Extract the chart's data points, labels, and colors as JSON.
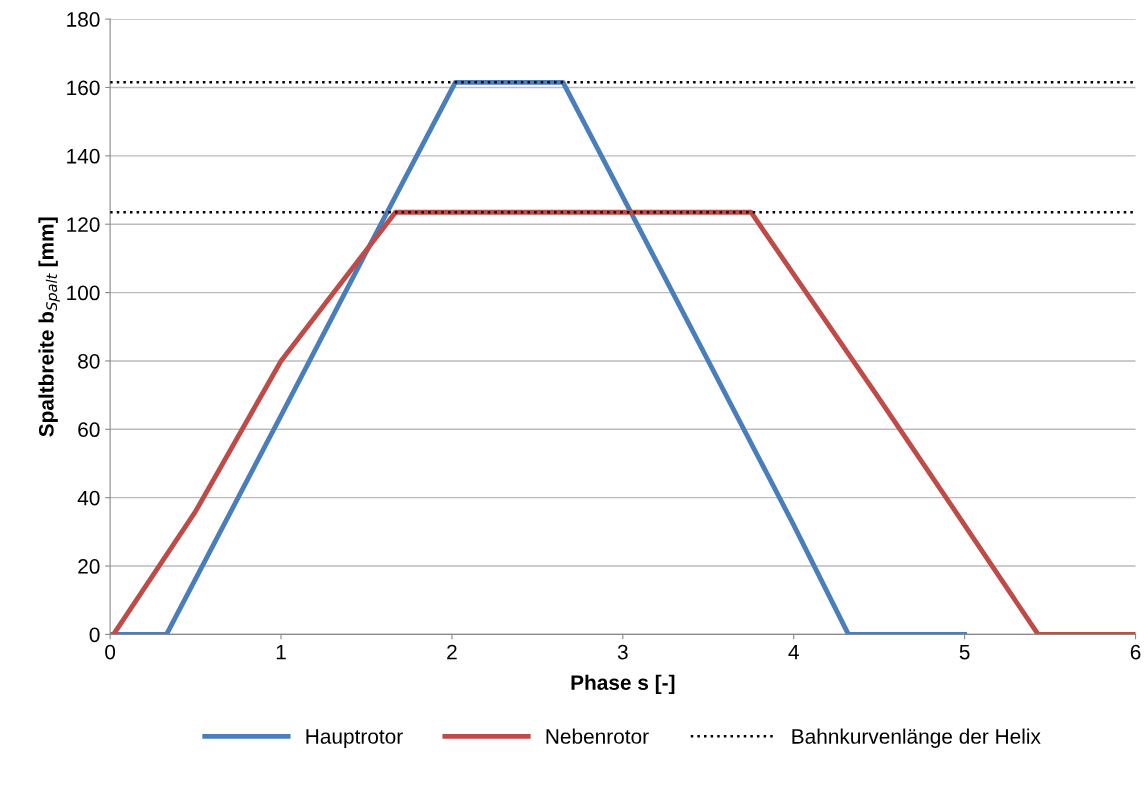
{
  "chart_data": {
    "type": "line",
    "xlabel": "Phase s [-]",
    "ylabel": "Spaltbreite b$_{Spalt}$ [mm]",
    "series": [
      {
        "name": "Hauptrotor",
        "color": "#4a7ebb",
        "x": [
          0,
          0.33,
          1.0,
          1.5,
          2.02,
          2.65,
          3.0,
          4.0,
          4.32,
          5.0
        ],
        "values": [
          0,
          0,
          64,
          112,
          161.5,
          161.5,
          128,
          32,
          0,
          0
        ]
      },
      {
        "name": "Nebenrotor",
        "color": "#be4b48",
        "x": [
          0.02,
          0.5,
          1.0,
          1.67,
          3.75,
          4.5,
          5.0,
          5.43,
          6.0
        ],
        "values": [
          0,
          36,
          80,
          123.5,
          123.5,
          69,
          32,
          0,
          0
        ]
      }
    ],
    "ref_lines": [
      {
        "axis": "y",
        "value": 161.5,
        "label": "Bahnkurvenlänge der Helix",
        "color": "#000000",
        "line_style": "dotted"
      },
      {
        "axis": "y",
        "value": 123.5,
        "color": "#000000",
        "line_style": "dotted"
      }
    ],
    "xlim": [
      0,
      6
    ],
    "xticks": [
      0,
      1,
      2,
      3,
      4,
      5,
      6
    ],
    "ylim": [
      0,
      180
    ],
    "yticks": [
      0,
      20,
      40,
      60,
      80,
      100,
      120,
      140,
      160,
      180
    ],
    "grid": "y",
    "legend": "bottom",
    "line_style": "solid",
    "marker": "none"
  }
}
